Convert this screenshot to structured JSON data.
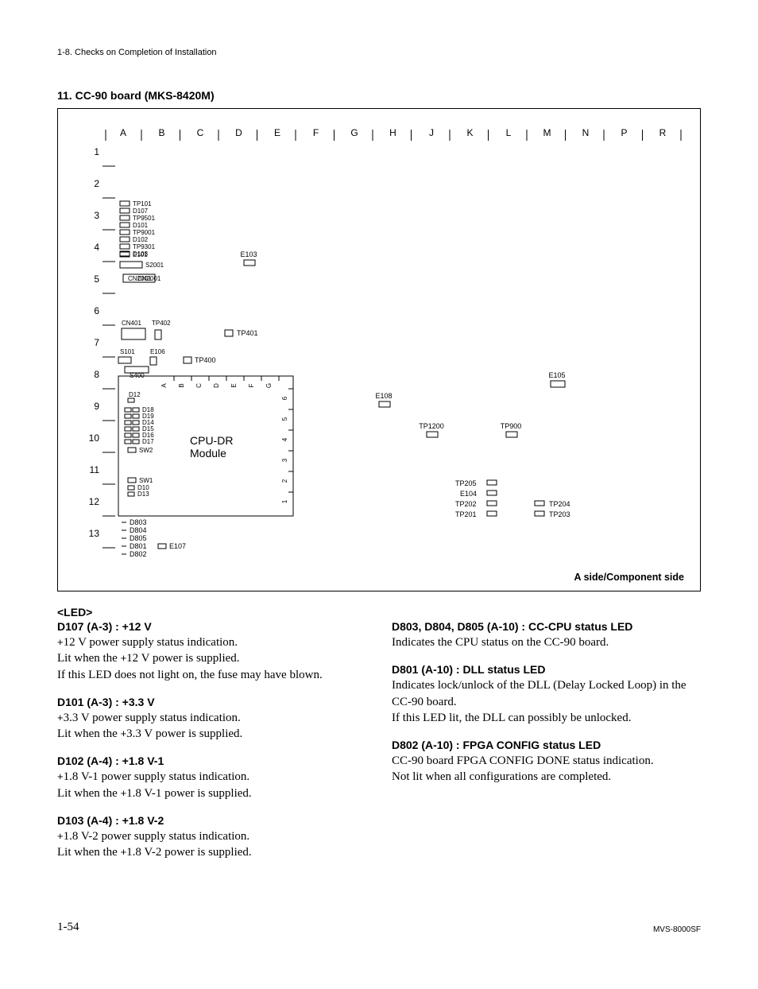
{
  "header": "1-8. Checks on Completion of Installation",
  "section_title": "11. CC-90 board (MKS-8420M)",
  "side_label": "A side/Component side",
  "diagram": {
    "cols": [
      "A",
      "B",
      "C",
      "D",
      "E",
      "F",
      "G",
      "H",
      "J",
      "K",
      "L",
      "M",
      "N",
      "P",
      "R"
    ],
    "rows": [
      "1",
      "2",
      "3",
      "4",
      "5",
      "6",
      "7",
      "8",
      "9",
      "10",
      "11",
      "12",
      "13"
    ],
    "module_label": "CPU-DR\nModule",
    "sub_cols": [
      "A",
      "B",
      "C",
      "D",
      "E",
      "F",
      "G"
    ],
    "sub_rows": [
      "1",
      "2",
      "3",
      "4",
      "5",
      "6"
    ],
    "group_a3": [
      "TP101",
      "D107",
      "TP9501",
      "D101",
      "TP9001",
      "D102",
      "TP9301",
      "D103"
    ],
    "e101": "E101",
    "s2001": "S2001",
    "cn2001": "CN2001",
    "e103": "E103",
    "cn401": "CN401",
    "tp402": "TP402",
    "tp401": "TP401",
    "s101": "S101",
    "e106": "E106",
    "tp400": "TP400",
    "s400": "S400",
    "d12": "D12",
    "mod_leds": [
      "D18",
      "D19",
      "D14",
      "D15",
      "D16",
      "D17"
    ],
    "sw2": "SW2",
    "sw1": "SW1",
    "d10": "D10",
    "d13": "D13",
    "d803_5": [
      "D803",
      "D804",
      "D805",
      "D801",
      "D802"
    ],
    "e107": "E107",
    "e108": "E108",
    "tp1200": "TP1200",
    "e105": "E105",
    "tp900": "TP900",
    "tp205": "TP205",
    "e104": "E104",
    "tp202": "TP202",
    "tp201": "TP201",
    "tp204": "TP204",
    "tp203": "TP203"
  },
  "led_heading": "<LED>",
  "left_entries": [
    {
      "title": "D107 (A-3) : +12 V",
      "lines": [
        "+12 V power supply status indication.",
        "Lit when the +12 V power is supplied.",
        "If this LED does not light on, the fuse may have blown."
      ]
    },
    {
      "title": "D101 (A-3) : +3.3 V",
      "lines": [
        "+3.3 V power supply status indication.",
        "Lit when the +3.3 V power is supplied."
      ]
    },
    {
      "title": "D102 (A-4) : +1.8 V-1",
      "lines": [
        "+1.8 V-1 power supply status indication.",
        "Lit when the +1.8 V-1 power is supplied."
      ]
    },
    {
      "title": "D103 (A-4) : +1.8 V-2",
      "lines": [
        "+1.8 V-2 power supply status indication.",
        "Lit when the +1.8 V-2 power is supplied."
      ]
    }
  ],
  "right_entries": [
    {
      "title": "D803, D804, D805 (A-10) : CC-CPU status LED",
      "lines": [
        "Indicates the CPU status on the CC-90 board."
      ]
    },
    {
      "title": "D801 (A-10) : DLL status LED",
      "lines": [
        "Indicates lock/unlock of the DLL (Delay Locked Loop) in the CC-90 board.",
        "If this LED lit, the DLL can possibly be unlocked."
      ]
    },
    {
      "title": "D802 (A-10) : FPGA CONFIG status LED",
      "lines": [
        "CC-90 board FPGA CONFIG DONE status indication.",
        "Not lit when all configurations are completed."
      ]
    }
  ],
  "footer": {
    "page": "1-54",
    "docid": "MVS-8000SF"
  }
}
